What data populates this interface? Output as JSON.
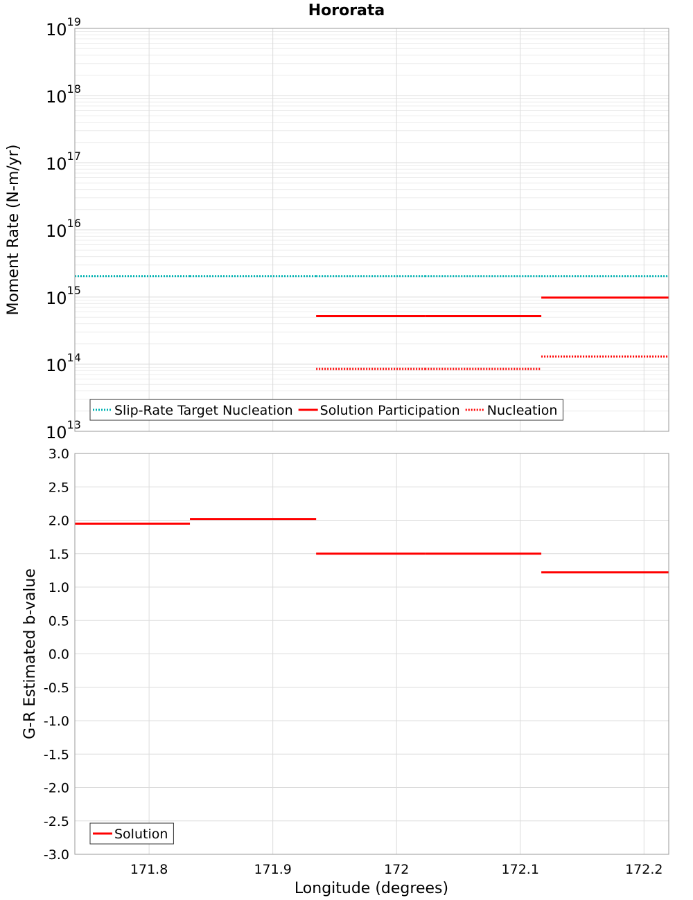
{
  "title": "Hororata",
  "xlabel": "Longitude (degrees)",
  "chart_data": [
    {
      "type": "line",
      "name": "moment-rate",
      "title": "Hororata",
      "xlabel": "Longitude (degrees)",
      "ylabel": "Moment Rate (N-m/yr)",
      "yscale": "log",
      "xlim": [
        171.74,
        172.22
      ],
      "ylim": [
        10000000000000.0,
        1e+19
      ],
      "x_ticks": [
        171.8,
        171.9,
        172,
        172.1,
        172.2
      ],
      "x_tick_labels": [
        "171.8",
        "171.9",
        "172",
        "172.1",
        "172.2"
      ],
      "y_ticks": [
        {
          "base": "10",
          "exp": "13",
          "value": 10000000000000.0
        },
        {
          "base": "10",
          "exp": "14",
          "value": 100000000000000.0
        },
        {
          "base": "10",
          "exp": "15",
          "value": 1000000000000000.0
        },
        {
          "base": "10",
          "exp": "16",
          "value": 1e+16
        },
        {
          "base": "10",
          "exp": "17",
          "value": 1e+17
        },
        {
          "base": "10",
          "exp": "18",
          "value": 1e+18
        },
        {
          "base": "10",
          "exp": "19",
          "value": 1e+19
        }
      ],
      "legend_position": "bottom-left",
      "series": [
        {
          "name": "Slip-Rate Target Nucleation",
          "color": "#00b3b3",
          "style": "dotted",
          "segments": [
            {
              "x0": 171.74,
              "x1": 171.833,
              "y": 2050000000000000.0
            },
            {
              "x0": 171.833,
              "x1": 171.935,
              "y": 2050000000000000.0
            },
            {
              "x0": 171.935,
              "x1": 172.023,
              "y": 2050000000000000.0
            },
            {
              "x0": 172.023,
              "x1": 172.117,
              "y": 2050000000000000.0
            },
            {
              "x0": 172.117,
              "x1": 172.22,
              "y": 2050000000000000.0
            }
          ]
        },
        {
          "name": "Solution Participation",
          "color": "#ff0000",
          "style": "solid",
          "segments": [
            {
              "x0": 171.935,
              "x1": 172.023,
              "y": 520000000000000.0
            },
            {
              "x0": 172.023,
              "x1": 172.117,
              "y": 520000000000000.0
            },
            {
              "x0": 172.117,
              "x1": 172.22,
              "y": 980000000000000.0
            }
          ]
        },
        {
          "name": "Nucleation",
          "color": "#ff0000",
          "style": "dotted",
          "segments": [
            {
              "x0": 171.935,
              "x1": 172.023,
              "y": 85000000000000.0
            },
            {
              "x0": 172.023,
              "x1": 172.117,
              "y": 85000000000000.0
            },
            {
              "x0": 172.117,
              "x1": 172.22,
              "y": 130000000000000.0
            }
          ]
        }
      ]
    },
    {
      "type": "line",
      "name": "b-value",
      "title": "",
      "xlabel": "Longitude (degrees)",
      "ylabel": "G-R Estimated b-value",
      "yscale": "linear",
      "xlim": [
        171.74,
        172.22
      ],
      "ylim": [
        -3.0,
        3.0
      ],
      "x_ticks": [
        171.8,
        171.9,
        172,
        172.1,
        172.2
      ],
      "x_tick_labels": [
        "171.8",
        "171.9",
        "172",
        "172.1",
        "172.2"
      ],
      "y_ticks": [
        3.0,
        2.5,
        2.0,
        1.5,
        1.0,
        0.5,
        0.0,
        -0.5,
        -1.0,
        -1.5,
        -2.0,
        -2.5,
        -3.0
      ],
      "y_tick_labels": [
        "3.0",
        "2.5",
        "2.0",
        "1.5",
        "1.0",
        "0.5",
        "0.0",
        "-0.5",
        "-1.0",
        "-1.5",
        "-2.0",
        "-2.5",
        "-3.0"
      ],
      "legend_position": "bottom-left",
      "series": [
        {
          "name": "Solution",
          "color": "#ff0000",
          "style": "solid",
          "segments": [
            {
              "x0": 171.74,
              "x1": 171.833,
              "y": 1.95
            },
            {
              "x0": 171.833,
              "x1": 171.935,
              "y": 2.02
            },
            {
              "x0": 171.935,
              "x1": 172.023,
              "y": 1.5
            },
            {
              "x0": 172.023,
              "x1": 172.117,
              "y": 1.5
            },
            {
              "x0": 172.117,
              "x1": 172.22,
              "y": 1.22
            }
          ]
        }
      ]
    }
  ]
}
